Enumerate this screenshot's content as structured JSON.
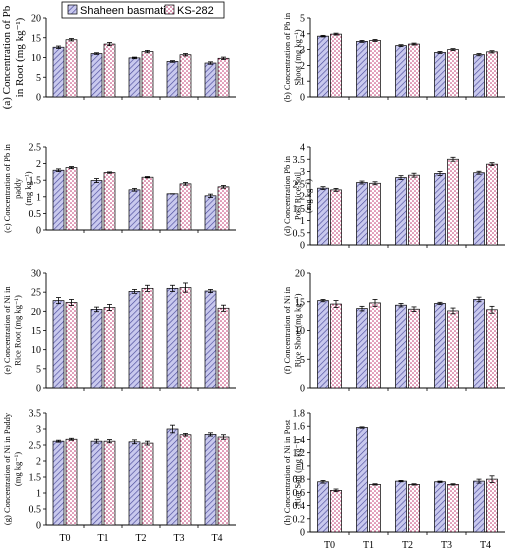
{
  "legend": {
    "series_a": "Shaheen basmati",
    "series_b": "KS-282"
  },
  "colors": {
    "series_a_fill": "#c9c9ee",
    "series_a_hatch": "#4a4a9a",
    "series_b_fill": "#ffffff",
    "series_b_dots": "#c0306a"
  },
  "chart_data": [
    {
      "type": "bar",
      "ylabel": "(a) Concentration of Pb in Root  (mg kg⁻¹)",
      "ylabel_lines": [
        "(a) Concentration of Pb",
        "in Root  (mg kg⁻¹)"
      ],
      "categories": [
        "T0",
        "T1",
        "T2",
        "T3",
        "T4"
      ],
      "show_x_ticks": false,
      "ylim": [
        0,
        20
      ],
      "yticks": [
        0,
        5,
        10,
        15,
        20
      ],
      "series": [
        {
          "name": "Shaheen basmati",
          "values": [
            12.6,
            11.0,
            9.9,
            9.0,
            8.6
          ],
          "errors": [
            0.3,
            0.2,
            0.2,
            0.2,
            0.3
          ]
        },
        {
          "name": "KS-282",
          "values": [
            14.5,
            13.4,
            11.5,
            10.7,
            9.8
          ],
          "errors": [
            0.3,
            0.4,
            0.3,
            0.3,
            0.3
          ]
        }
      ]
    },
    {
      "type": "bar",
      "ylabel": "(b) Concentration of Pb in Shoot  (mg kg⁻¹)",
      "ylabel_lines": [
        "(b) Concentration of Pb in",
        "Shoot  (mg kg⁻¹)"
      ],
      "categories": [
        "T0",
        "T1",
        "T2",
        "T3",
        "T4"
      ],
      "show_x_ticks": false,
      "ylim": [
        0,
        5
      ],
      "yticks": [
        0,
        1,
        2,
        3,
        4,
        5
      ],
      "series": [
        {
          "name": "Shaheen basmati",
          "values": [
            3.85,
            3.52,
            3.25,
            2.82,
            2.68
          ],
          "errors": [
            0.05,
            0.06,
            0.06,
            0.06,
            0.07
          ]
        },
        {
          "name": "KS-282",
          "values": [
            3.98,
            3.58,
            3.35,
            3.0,
            2.86
          ],
          "errors": [
            0.06,
            0.06,
            0.06,
            0.06,
            0.07
          ]
        }
      ]
    },
    {
      "type": "bar",
      "ylabel": "(c) Concentration of Pb in paddy  (mg kg⁻¹)",
      "ylabel_lines": [
        "(c) Concentration of Pb in",
        "paddy",
        "(mg kg⁻¹)"
      ],
      "categories": [
        "T0",
        "T1",
        "T2",
        "T3",
        "T4"
      ],
      "show_x_ticks": false,
      "ylim": [
        0,
        2.5
      ],
      "yticks": [
        0,
        0.5,
        1,
        1.5,
        2,
        2.5
      ],
      "series": [
        {
          "name": "Shaheen basmati",
          "values": [
            1.8,
            1.49,
            1.21,
            1.09,
            1.03
          ],
          "errors": [
            0.04,
            0.06,
            0.04,
            0.0,
            0.05
          ]
        },
        {
          "name": "KS-282",
          "values": [
            1.88,
            1.73,
            1.59,
            1.39,
            1.3
          ],
          "errors": [
            0.03,
            0.02,
            0.02,
            0.04,
            0.04
          ]
        }
      ]
    },
    {
      "type": "bar",
      "ylabel": "(d) Concentration Pb in Post Rice Soil  (mg kg⁻¹)",
      "ylabel_lines": [
        "(d) Concentration Pb in",
        "Post Rice Soil",
        "(mg kg⁻¹)"
      ],
      "categories": [
        "T0",
        "T1",
        "T2",
        "T3",
        "T4"
      ],
      "show_x_ticks": false,
      "ylim": [
        0,
        4
      ],
      "yticks": [
        0,
        0.5,
        1,
        1.5,
        2,
        2.5,
        3,
        3.5,
        4
      ],
      "series": [
        {
          "name": "Shaheen basmati",
          "values": [
            2.32,
            2.55,
            2.75,
            2.92,
            2.95
          ],
          "errors": [
            0.06,
            0.06,
            0.08,
            0.08,
            0.06
          ]
        },
        {
          "name": "KS-282",
          "values": [
            2.25,
            2.52,
            2.85,
            3.5,
            3.3
          ],
          "errors": [
            0.06,
            0.06,
            0.08,
            0.08,
            0.06
          ]
        }
      ]
    },
    {
      "type": "bar",
      "ylabel": "(e) Concentration of Ni in Rice Root  (mg kg⁻¹)",
      "ylabel_lines": [
        "(e) Concentration of Ni in",
        "Rice Root  (mg kg⁻¹)"
      ],
      "categories": [
        "T0",
        "T1",
        "T2",
        "T3",
        "T4"
      ],
      "show_x_ticks": false,
      "ylim": [
        0,
        30
      ],
      "yticks": [
        0,
        5,
        10,
        15,
        20,
        25,
        30
      ],
      "series": [
        {
          "name": "Shaheen basmati",
          "values": [
            22.8,
            20.5,
            25.2,
            26.0,
            25.3
          ],
          "errors": [
            0.8,
            0.6,
            0.5,
            0.8,
            0.4
          ]
        },
        {
          "name": "KS-282",
          "values": [
            22.3,
            21.0,
            26.0,
            26.2,
            20.8
          ],
          "errors": [
            0.8,
            0.8,
            0.8,
            1.2,
            0.8
          ]
        }
      ]
    },
    {
      "type": "bar",
      "ylabel": "(f) Concentration of Ni in Rice Shoot  (mg kg⁻¹)",
      "ylabel_lines": [
        "(f) Concentration of Ni in",
        "Rice Shoot  (mg kg⁻¹)"
      ],
      "categories": [
        "T0",
        "T1",
        "T2",
        "T3",
        "T4"
      ],
      "show_x_ticks": false,
      "ylim": [
        0,
        20
      ],
      "yticks": [
        0,
        5,
        10,
        15,
        20
      ],
      "series": [
        {
          "name": "Shaheen basmati",
          "values": [
            15.2,
            13.8,
            14.4,
            14.7,
            15.4
          ],
          "errors": [
            0.2,
            0.4,
            0.3,
            0.2,
            0.4
          ]
        },
        {
          "name": "KS-282",
          "values": [
            14.6,
            14.8,
            13.7,
            13.4,
            13.6
          ],
          "errors": [
            0.6,
            0.6,
            0.4,
            0.5,
            0.6
          ]
        }
      ]
    },
    {
      "type": "bar",
      "ylabel": "(g) Concentration of Ni in Paddy  (mg kg⁻¹)",
      "ylabel_lines": [
        "(g) Concentration of Ni in Paddy",
        "(mg kg⁻¹)"
      ],
      "categories": [
        "T0",
        "T1",
        "T2",
        "T3",
        "T4"
      ],
      "show_x_ticks": true,
      "ylim": [
        0,
        3.5
      ],
      "yticks": [
        0,
        0.5,
        1,
        1.5,
        2,
        2.5,
        3,
        3.5
      ],
      "series": [
        {
          "name": "Shaheen basmati",
          "values": [
            2.62,
            2.62,
            2.6,
            3.0,
            2.83
          ],
          "errors": [
            0.03,
            0.06,
            0.06,
            0.12,
            0.05
          ]
        },
        {
          "name": "KS-282",
          "values": [
            2.68,
            2.62,
            2.56,
            2.82,
            2.75
          ],
          "errors": [
            0.03,
            0.05,
            0.06,
            0.04,
            0.07
          ]
        }
      ]
    },
    {
      "type": "bar",
      "ylabel": "(h) Concentration of Ni in Post Rice Soil  (mg kg⁻¹)",
      "ylabel_lines": [
        "(h) Concentration of Ni in Post",
        "Rice Soil  (mg kg⁻¹)"
      ],
      "categories": [
        "T0",
        "T1",
        "T2",
        "T3",
        "T4"
      ],
      "show_x_ticks": true,
      "ylim": [
        0,
        1.8
      ],
      "yticks": [
        0,
        0.2,
        0.4,
        0.6,
        0.8,
        1,
        1.2,
        1.4,
        1.6,
        1.8
      ],
      "series": [
        {
          "name": "Shaheen basmati",
          "values": [
            0.76,
            1.58,
            0.77,
            0.76,
            0.77
          ],
          "errors": [
            0.02,
            0.01,
            0.01,
            0.01,
            0.03
          ]
        },
        {
          "name": "KS-282",
          "values": [
            0.63,
            0.72,
            0.72,
            0.72,
            0.8
          ],
          "errors": [
            0.02,
            0.01,
            0.01,
            0.01,
            0.05
          ]
        }
      ]
    }
  ]
}
